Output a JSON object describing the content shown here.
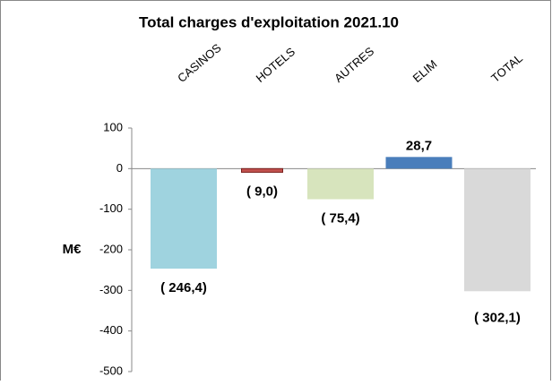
{
  "chart_data": {
    "type": "bar",
    "title": "Total charges d'exploitation 2021.10",
    "ylabel": "M€",
    "categories": [
      "CASINOS",
      "HOTELS",
      "AUTRES",
      "ELIM",
      "TOTAL"
    ],
    "values": [
      -246.4,
      -9.0,
      -75.4,
      28.7,
      -302.1
    ],
    "value_labels": [
      "( 246,4)",
      "( 9,0)",
      "( 75,4)",
      "28,7",
      "( 302,1)"
    ],
    "colors": [
      "#9fd3df",
      "#c0504d",
      "#d7e4bd",
      "#4a7ebb",
      "#d9d9d9"
    ],
    "ylim": [
      -500,
      100
    ],
    "yticks": [
      100,
      0,
      -100,
      -200,
      -300,
      -400,
      -500
    ],
    "grid": false
  }
}
